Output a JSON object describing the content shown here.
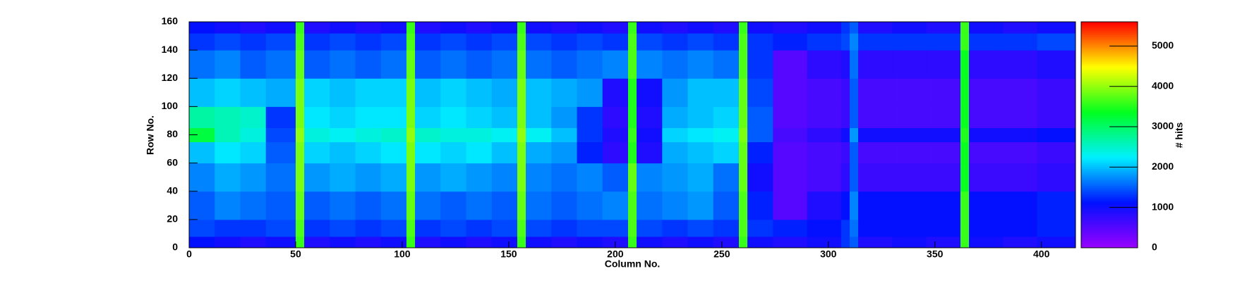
{
  "chart_data": {
    "type": "heatmap",
    "xlabel": "Column No.",
    "ylabel": "Row No.",
    "zlabel": "# hits",
    "xbins": [
      0,
      12,
      24,
      36,
      50,
      54,
      66,
      78,
      90,
      102,
      106,
      118,
      130,
      142,
      154,
      158,
      170,
      182,
      194,
      206,
      210,
      222,
      234,
      246,
      258,
      262,
      274,
      290,
      306,
      310,
      314,
      330,
      346,
      362,
      366,
      382,
      398,
      416
    ],
    "ybins": [
      0,
      8,
      20,
      40,
      60,
      75,
      85,
      100,
      120,
      140,
      152,
      160
    ],
    "z": [
      [
        1100,
        1000,
        900,
        1000,
        3600,
        900,
        1000,
        900,
        1000,
        3600,
        900,
        1000,
        900,
        1000,
        3600,
        1000,
        900,
        1000,
        900,
        3600,
        1000,
        900,
        1000,
        900,
        3600,
        1000,
        900,
        1000,
        1300,
        1500,
        900,
        1000,
        900,
        3600,
        1000,
        900,
        1000
      ],
      [
        1400,
        1300,
        1300,
        1400,
        3700,
        1300,
        1400,
        1300,
        1400,
        3700,
        1300,
        1400,
        1300,
        1400,
        3700,
        1400,
        1300,
        1400,
        1400,
        3700,
        1400,
        1300,
        1400,
        1300,
        3700,
        1300,
        1200,
        1100,
        1300,
        1600,
        1100,
        1100,
        1100,
        3600,
        1100,
        1100,
        1200
      ],
      [
        1500,
        1700,
        1600,
        1500,
        3800,
        1500,
        1600,
        1500,
        1600,
        3800,
        1600,
        1500,
        1600,
        1500,
        3800,
        1600,
        1500,
        1600,
        1700,
        3700,
        1600,
        1700,
        1800,
        1500,
        3700,
        1200,
        500,
        900,
        1100,
        1700,
        1100,
        1100,
        1100,
        3600,
        1100,
        1100,
        1200
      ],
      [
        1700,
        1900,
        1800,
        1600,
        3900,
        1800,
        1900,
        1800,
        1900,
        3900,
        1800,
        1900,
        1800,
        1700,
        3900,
        1700,
        1600,
        1700,
        1500,
        3800,
        1700,
        1800,
        1900,
        1600,
        3800,
        1000,
        500,
        600,
        800,
        1500,
        700,
        700,
        700,
        3400,
        700,
        700,
        800
      ],
      [
        2000,
        2200,
        2100,
        1500,
        3900,
        2100,
        2000,
        2100,
        2200,
        3900,
        2200,
        2100,
        2200,
        2000,
        3900,
        1900,
        1800,
        1200,
        800,
        3500,
        900,
        1900,
        2000,
        2100,
        3800,
        1200,
        500,
        600,
        700,
        1500,
        600,
        600,
        600,
        3400,
        600,
        600,
        700
      ],
      [
        3200,
        2600,
        2400,
        1400,
        4000,
        2400,
        2300,
        2400,
        2500,
        4000,
        2500,
        2400,
        2400,
        2300,
        4000,
        2300,
        2000,
        1300,
        900,
        3600,
        1000,
        2100,
        2200,
        2300,
        3900,
        1500,
        600,
        800,
        1000,
        1800,
        1000,
        1000,
        1000,
        3500,
        1000,
        1000,
        1100
      ],
      [
        2700,
        2600,
        2500,
        1300,
        3900,
        2200,
        2100,
        2200,
        2200,
        3900,
        2100,
        2200,
        2100,
        2000,
        3900,
        2000,
        1800,
        1300,
        800,
        3500,
        900,
        1900,
        2000,
        2100,
        3800,
        1500,
        500,
        600,
        700,
        1500,
        600,
        600,
        600,
        3400,
        600,
        600,
        700
      ],
      [
        2000,
        2100,
        2000,
        1900,
        3900,
        2100,
        2000,
        2100,
        2100,
        3900,
        2000,
        2100,
        2000,
        1900,
        3900,
        2000,
        1900,
        1800,
        900,
        3500,
        1000,
        1800,
        2000,
        2000,
        3800,
        1400,
        500,
        600,
        700,
        1500,
        600,
        600,
        600,
        3400,
        600,
        600,
        700
      ],
      [
        1600,
        1700,
        1500,
        1600,
        3800,
        1500,
        1600,
        1500,
        1600,
        3800,
        1500,
        1600,
        1500,
        1600,
        3800,
        1600,
        1500,
        1600,
        1700,
        3700,
        1700,
        1600,
        1700,
        1600,
        3700,
        1300,
        500,
        800,
        900,
        1600,
        800,
        800,
        800,
        3400,
        800,
        800,
        900
      ],
      [
        1300,
        1400,
        1300,
        1400,
        3700,
        1300,
        1400,
        1300,
        1400,
        3700,
        1300,
        1400,
        1300,
        1400,
        3700,
        1400,
        1300,
        1400,
        1300,
        3700,
        1400,
        1300,
        1400,
        1300,
        3700,
        1300,
        1200,
        1300,
        1400,
        1700,
        1300,
        1300,
        1300,
        3600,
        1300,
        1300,
        1400
      ],
      [
        1100,
        1000,
        900,
        1000,
        3600,
        900,
        1000,
        900,
        1000,
        3600,
        900,
        1000,
        900,
        1000,
        3600,
        1000,
        900,
        1000,
        900,
        3600,
        1000,
        900,
        1000,
        900,
        3600,
        1000,
        900,
        1000,
        1300,
        1500,
        900,
        1000,
        900,
        3600,
        1000,
        900,
        1000
      ]
    ],
    "xlim": [
      0,
      416
    ],
    "ylim": [
      0,
      160
    ],
    "zlim": [
      0,
      5600
    ],
    "xticks": [
      0,
      50,
      100,
      150,
      200,
      250,
      300,
      350,
      400
    ],
    "yticks": [
      0,
      20,
      40,
      60,
      80,
      100,
      120,
      140,
      160
    ],
    "zticks": [
      0,
      1000,
      2000,
      3000,
      4000,
      5000
    ],
    "colorscale": [
      "#9a00ff",
      "#0010ff",
      "#00f0ff",
      "#00ff20",
      "#ffff00",
      "#ff0000"
    ]
  }
}
